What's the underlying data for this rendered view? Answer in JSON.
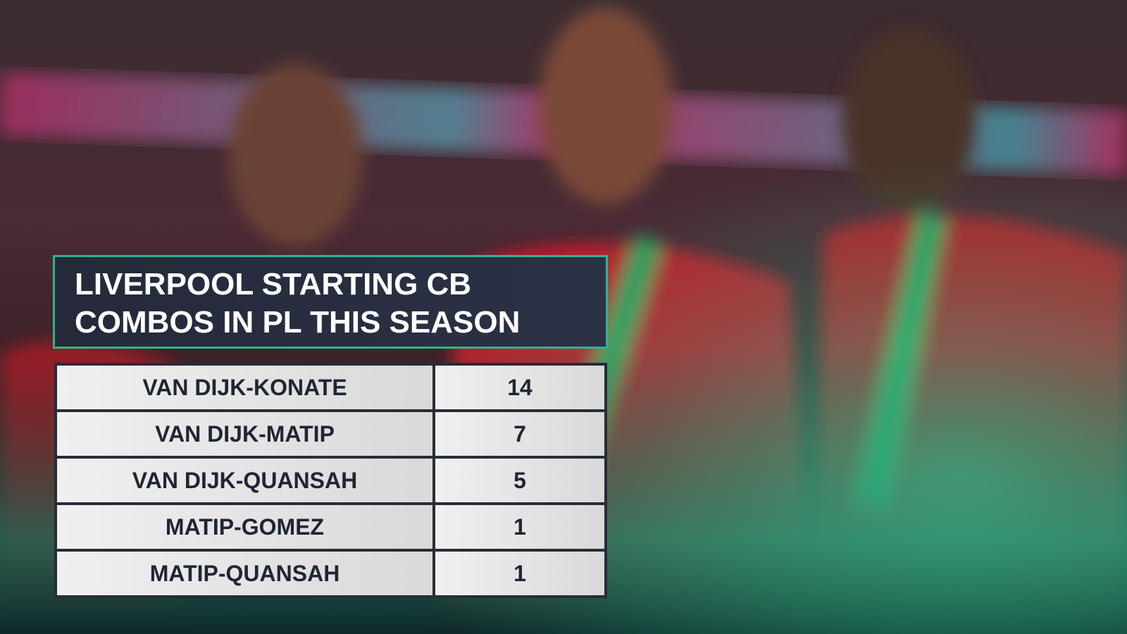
{
  "title": "LIVERPOOL STARTING CB COMBOS IN PL THIS SEASON",
  "table": {
    "rows": [
      [
        "VAN DIJK-KONATE",
        14
      ],
      [
        "VAN DIJK-MATIP",
        7
      ],
      [
        "VAN DIJK-QUANSAH",
        5
      ],
      [
        "MATIP-GOMEZ",
        1
      ],
      [
        "MATIP-QUANSAH",
        1
      ]
    ]
  }
}
